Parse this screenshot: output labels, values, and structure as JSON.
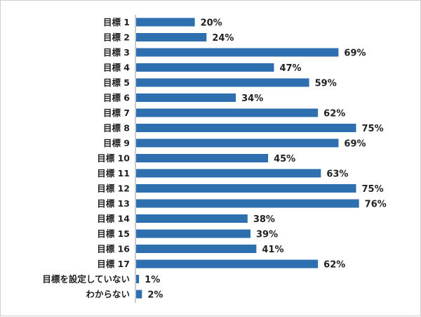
{
  "chart_data": {
    "type": "bar",
    "orientation": "horizontal",
    "categories": [
      "目標 1",
      "目標 2",
      "目標 3",
      "目標 4",
      "目標 5",
      "目標 6",
      "目標 7",
      "目標 8",
      "目標 9",
      "目標 10",
      "目標 11",
      "目標 12",
      "目標 13",
      "目標 14",
      "目標 15",
      "目標 16",
      "目標 17",
      "目標を設定していない",
      "わからない"
    ],
    "values": [
      20,
      24,
      69,
      47,
      59,
      34,
      62,
      75,
      69,
      45,
      63,
      75,
      76,
      38,
      39,
      41,
      62,
      1,
      2
    ],
    "value_suffix": "%",
    "xlim": [
      0,
      100
    ],
    "grid": false,
    "legend": "none",
    "bar_color": "#2e6fb0"
  }
}
